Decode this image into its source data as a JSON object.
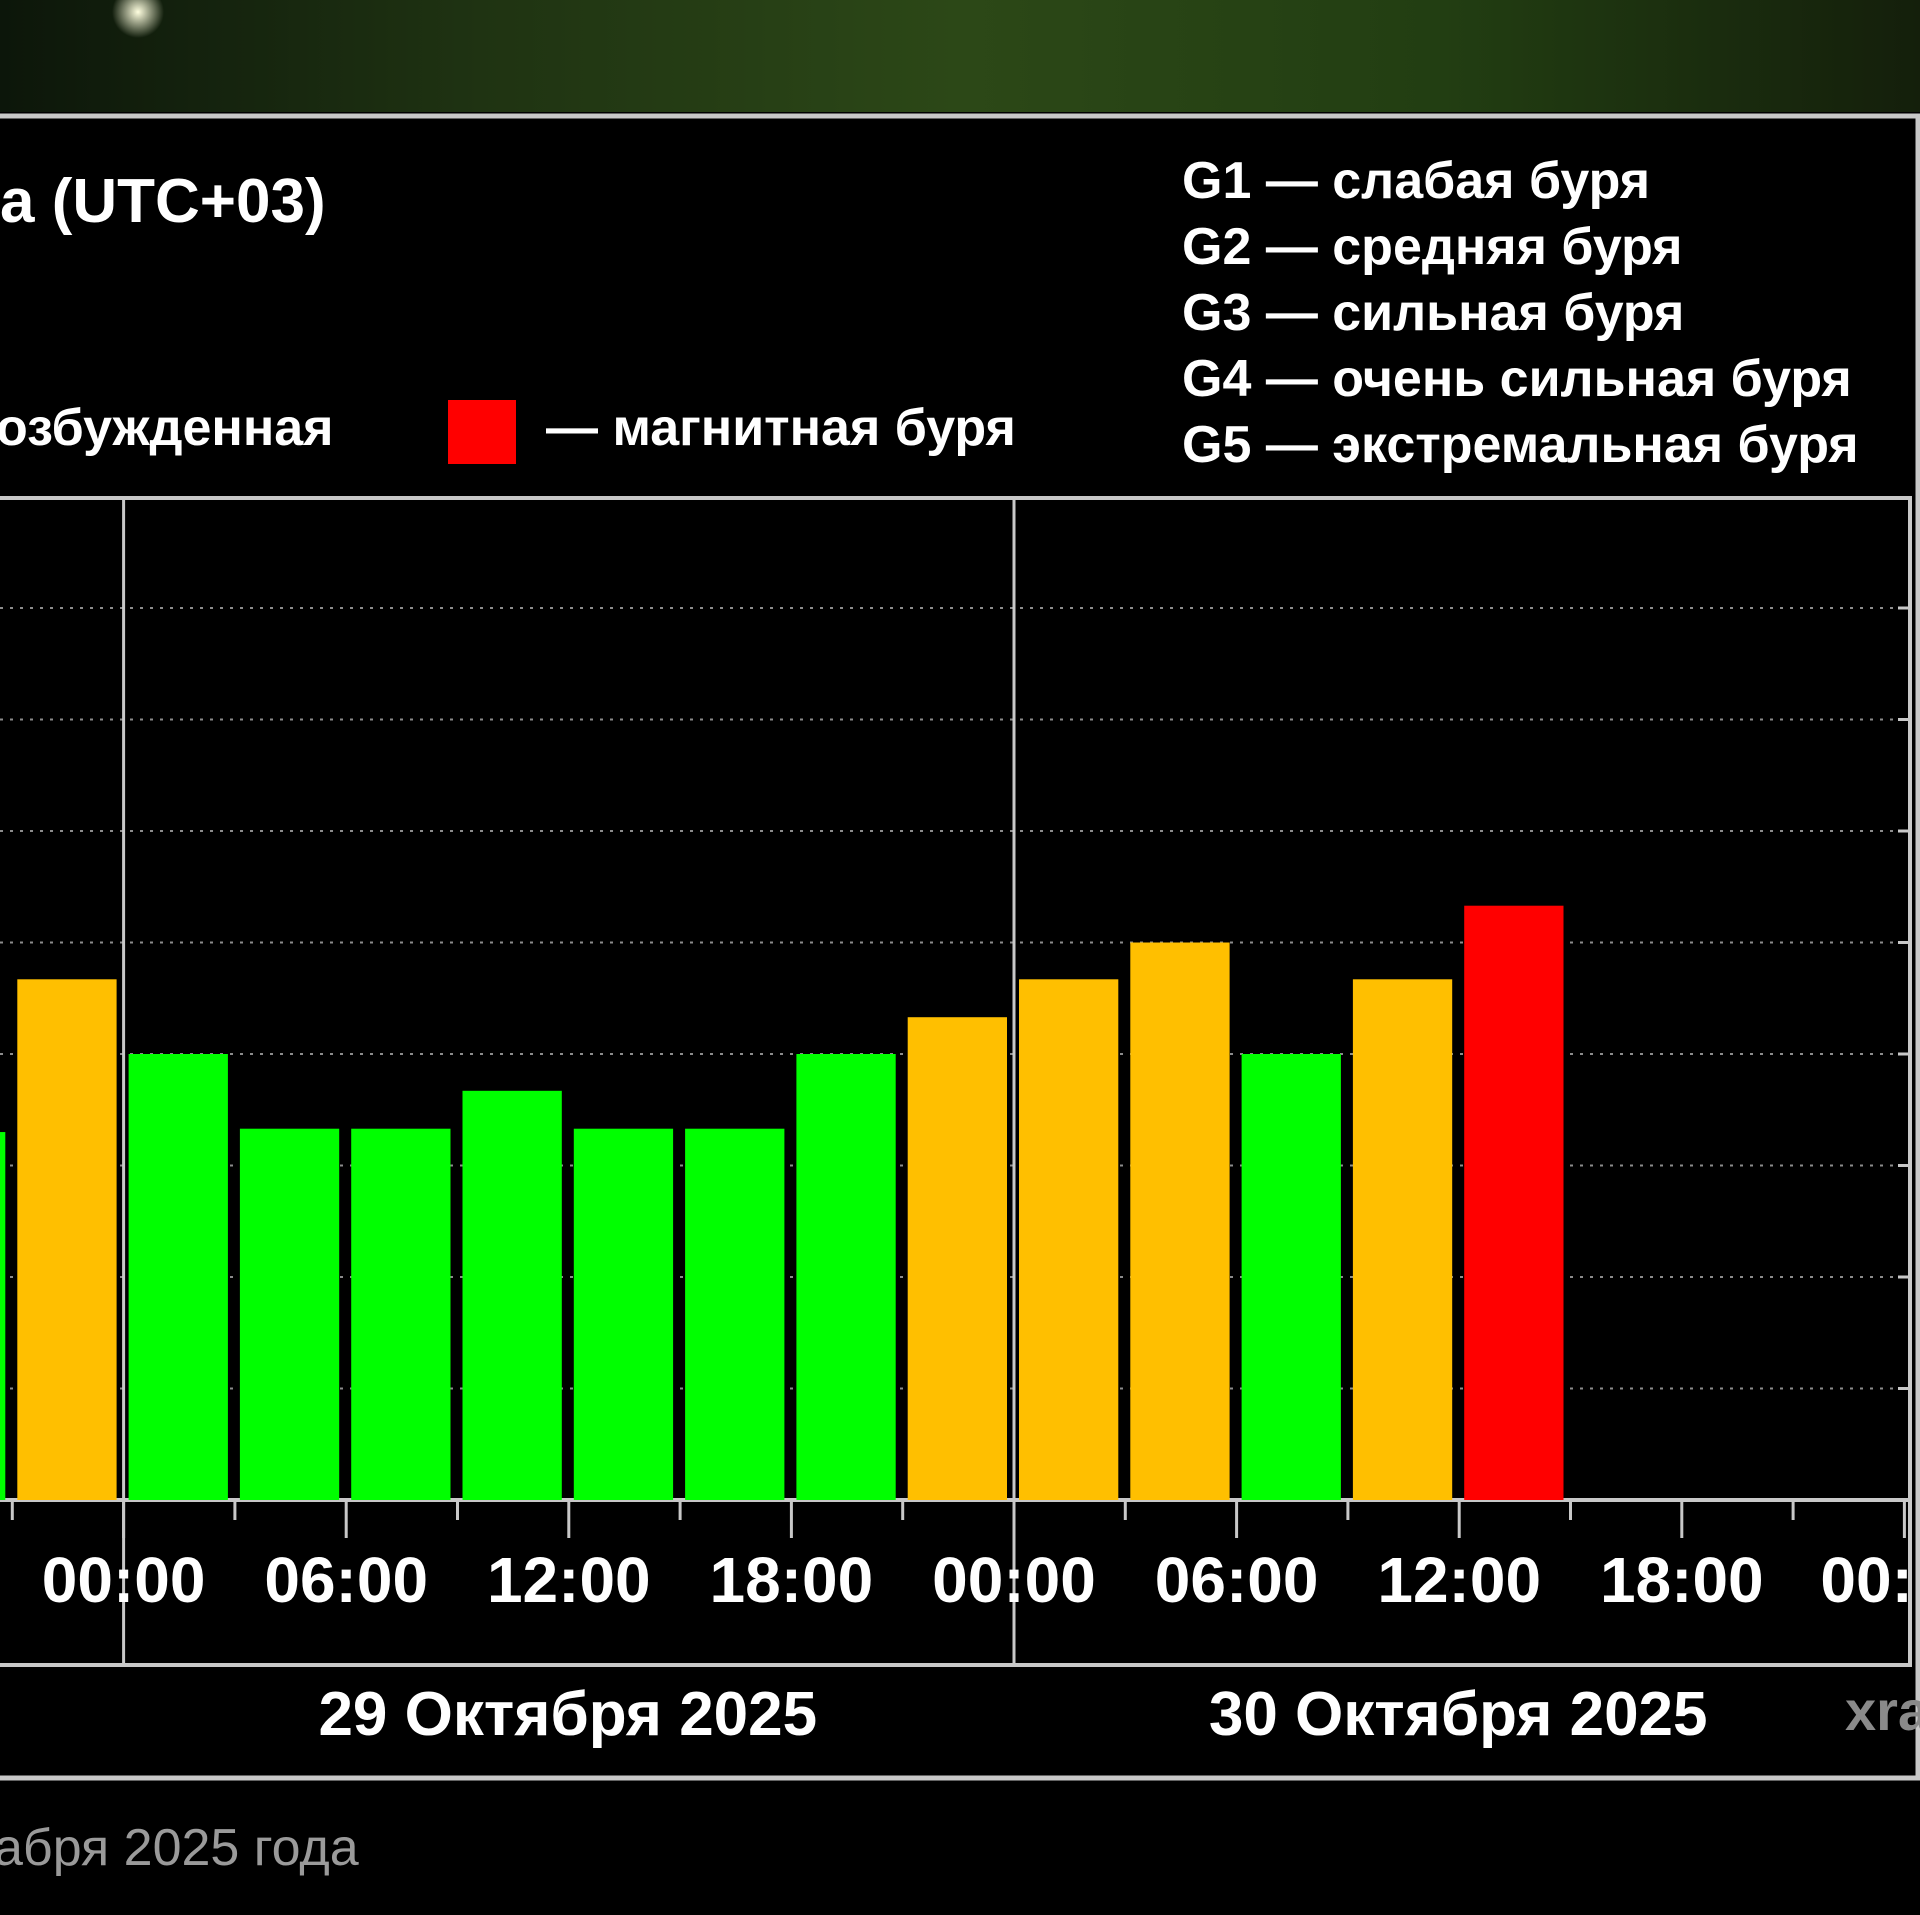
{
  "header": {
    "title_fragment": "а (UTC+03)"
  },
  "legend": {
    "excited_fragment": "озбужденная",
    "storm_label": "— магнитная буря",
    "storm_color": "#ff0000",
    "scale": [
      "G1 — слабая буря",
      "G2 — средняя буря",
      "G3 — сильная буря",
      "G4 — очень сильная буря",
      "G5 — экстремальная буря"
    ]
  },
  "colors": {
    "calm": "#00ff00",
    "excited": "#ffbf00",
    "storm": "#ff0000",
    "background": "#000000",
    "frame": "#c8c8c8",
    "grid": "#8c8c8c"
  },
  "chart_data": {
    "type": "bar",
    "x_ticks": [
      "00:00",
      "06:00",
      "12:00",
      "18:00",
      "00:00",
      "06:00",
      "12:00",
      "18:00",
      "00:"
    ],
    "dates": [
      "29 Октября 2025",
      "30 Октября 2025"
    ],
    "ylim": [
      0,
      9
    ],
    "grid": true,
    "interval_hours": 3,
    "bars": [
      {
        "start": "28 Oct 2025 18:00",
        "value": 3.3,
        "level": "calm"
      },
      {
        "start": "28 Oct 2025 21:00",
        "value": 4.67,
        "level": "excited"
      },
      {
        "start": "29 Oct 2025 00:00",
        "value": 4.0,
        "level": "calm"
      },
      {
        "start": "29 Oct 2025 03:00",
        "value": 3.33,
        "level": "calm"
      },
      {
        "start": "29 Oct 2025 06:00",
        "value": 3.33,
        "level": "calm"
      },
      {
        "start": "29 Oct 2025 09:00",
        "value": 3.67,
        "level": "calm"
      },
      {
        "start": "29 Oct 2025 12:00",
        "value": 3.33,
        "level": "calm"
      },
      {
        "start": "29 Oct 2025 15:00",
        "value": 3.33,
        "level": "calm"
      },
      {
        "start": "29 Oct 2025 18:00",
        "value": 4.0,
        "level": "calm"
      },
      {
        "start": "29 Oct 2025 21:00",
        "value": 4.33,
        "level": "excited"
      },
      {
        "start": "30 Oct 2025 00:00",
        "value": 4.67,
        "level": "excited"
      },
      {
        "start": "30 Oct 2025 03:00",
        "value": 5.0,
        "level": "excited"
      },
      {
        "start": "30 Oct 2025 06:00",
        "value": 4.0,
        "level": "calm"
      },
      {
        "start": "30 Oct 2025 09:00",
        "value": 4.67,
        "level": "excited"
      },
      {
        "start": "30 Oct 2025 12:00",
        "value": 5.33,
        "level": "storm"
      }
    ]
  },
  "watermark": "xra",
  "caption_fragment": "абря 2025 года"
}
